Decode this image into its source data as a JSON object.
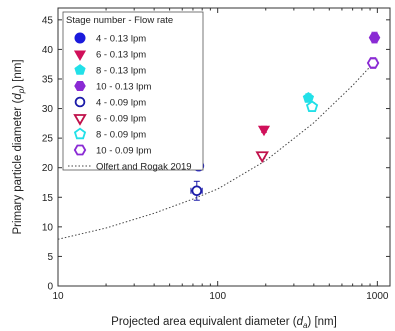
{
  "chart_data": {
    "type": "scatter",
    "xlabel": {
      "prefix": "Projected area equivalent diameter (",
      "sym": "d",
      "sub": "a",
      "suffix": ") [nm]"
    },
    "ylabel": {
      "prefix": "Primary particle diameter (",
      "sym": "d",
      "sub": "p",
      "suffix": ") [nm]"
    },
    "x_scale": "log",
    "xlim": [
      10,
      1200
    ],
    "ylim": [
      0,
      47
    ],
    "x_ticks": [
      10,
      100,
      1000
    ],
    "y_ticks": [
      0,
      5,
      10,
      15,
      20,
      25,
      30,
      35,
      40,
      45
    ],
    "grid": false,
    "legend": {
      "title": "Stage number - Flow rate",
      "placement": "top-left",
      "entries": [
        {
          "label": "4 - 0.13 lpm",
          "color": "#1a1adc",
          "marker": "circle",
          "filled": true
        },
        {
          "label": "6 - 0.13 lpm",
          "color": "#d0105a",
          "marker": "triangle-down",
          "filled": true
        },
        {
          "label": "8 - 0.13 lpm",
          "color": "#22e0e8",
          "marker": "pentagon",
          "filled": true
        },
        {
          "label": "10 - 0.13 lpm",
          "color": "#8a2ad4",
          "marker": "hexagon",
          "filled": true
        },
        {
          "label": "4 - 0.09 lpm",
          "color": "#1a1aa8",
          "marker": "circle",
          "filled": false
        },
        {
          "label": "6 - 0.09 lpm",
          "color": "#c0104a",
          "marker": "triangle-down",
          "filled": false
        },
        {
          "label": "8 - 0.09 lpm",
          "color": "#22e0e8",
          "marker": "pentagon",
          "filled": false
        },
        {
          "label": "10 - 0.09 lpm",
          "color": "#8a2ad4",
          "marker": "hexagon",
          "filled": false
        },
        {
          "label": "Olfert and Rogak 2019",
          "color": "#444444",
          "marker": "dotted-line"
        }
      ]
    },
    "series": [
      {
        "name": "4 - 0.13 lpm",
        "points": [
          {
            "x": 76,
            "y": 20.3,
            "yerr": 0.6
          }
        ]
      },
      {
        "name": "6 - 0.13 lpm",
        "points": [
          {
            "x": 195,
            "y": 26.5,
            "yerr": 0.5
          }
        ]
      },
      {
        "name": "8 - 0.13 lpm",
        "points": [
          {
            "x": 370,
            "y": 31.8,
            "yerr": 0.7
          }
        ]
      },
      {
        "name": "10 - 0.13 lpm",
        "points": [
          {
            "x": 960,
            "y": 42.0,
            "yerr": 0.9
          }
        ]
      },
      {
        "name": "4 - 0.09 lpm",
        "points": [
          {
            "x": 74,
            "y": 16.1,
            "xerr": 6,
            "yerr": 1.6
          }
        ]
      },
      {
        "name": "6 - 0.09 lpm",
        "points": [
          {
            "x": 190,
            "y": 22.1,
            "yerr": 0.5
          }
        ]
      },
      {
        "name": "8 - 0.09 lpm",
        "points": [
          {
            "x": 390,
            "y": 30.3,
            "yerr": 0.7
          }
        ]
      },
      {
        "name": "10 - 0.09 lpm",
        "points": [
          {
            "x": 940,
            "y": 37.7,
            "yerr": 0.9
          }
        ]
      }
    ],
    "fit_curve": {
      "name": "Olfert and Rogak 2019",
      "x": [
        10,
        20,
        40,
        70,
        100,
        200,
        400,
        700,
        1000
      ],
      "y": [
        7.9,
        9.8,
        12.3,
        14.7,
        16.4,
        21.2,
        27.6,
        33.9,
        38.4
      ]
    }
  }
}
